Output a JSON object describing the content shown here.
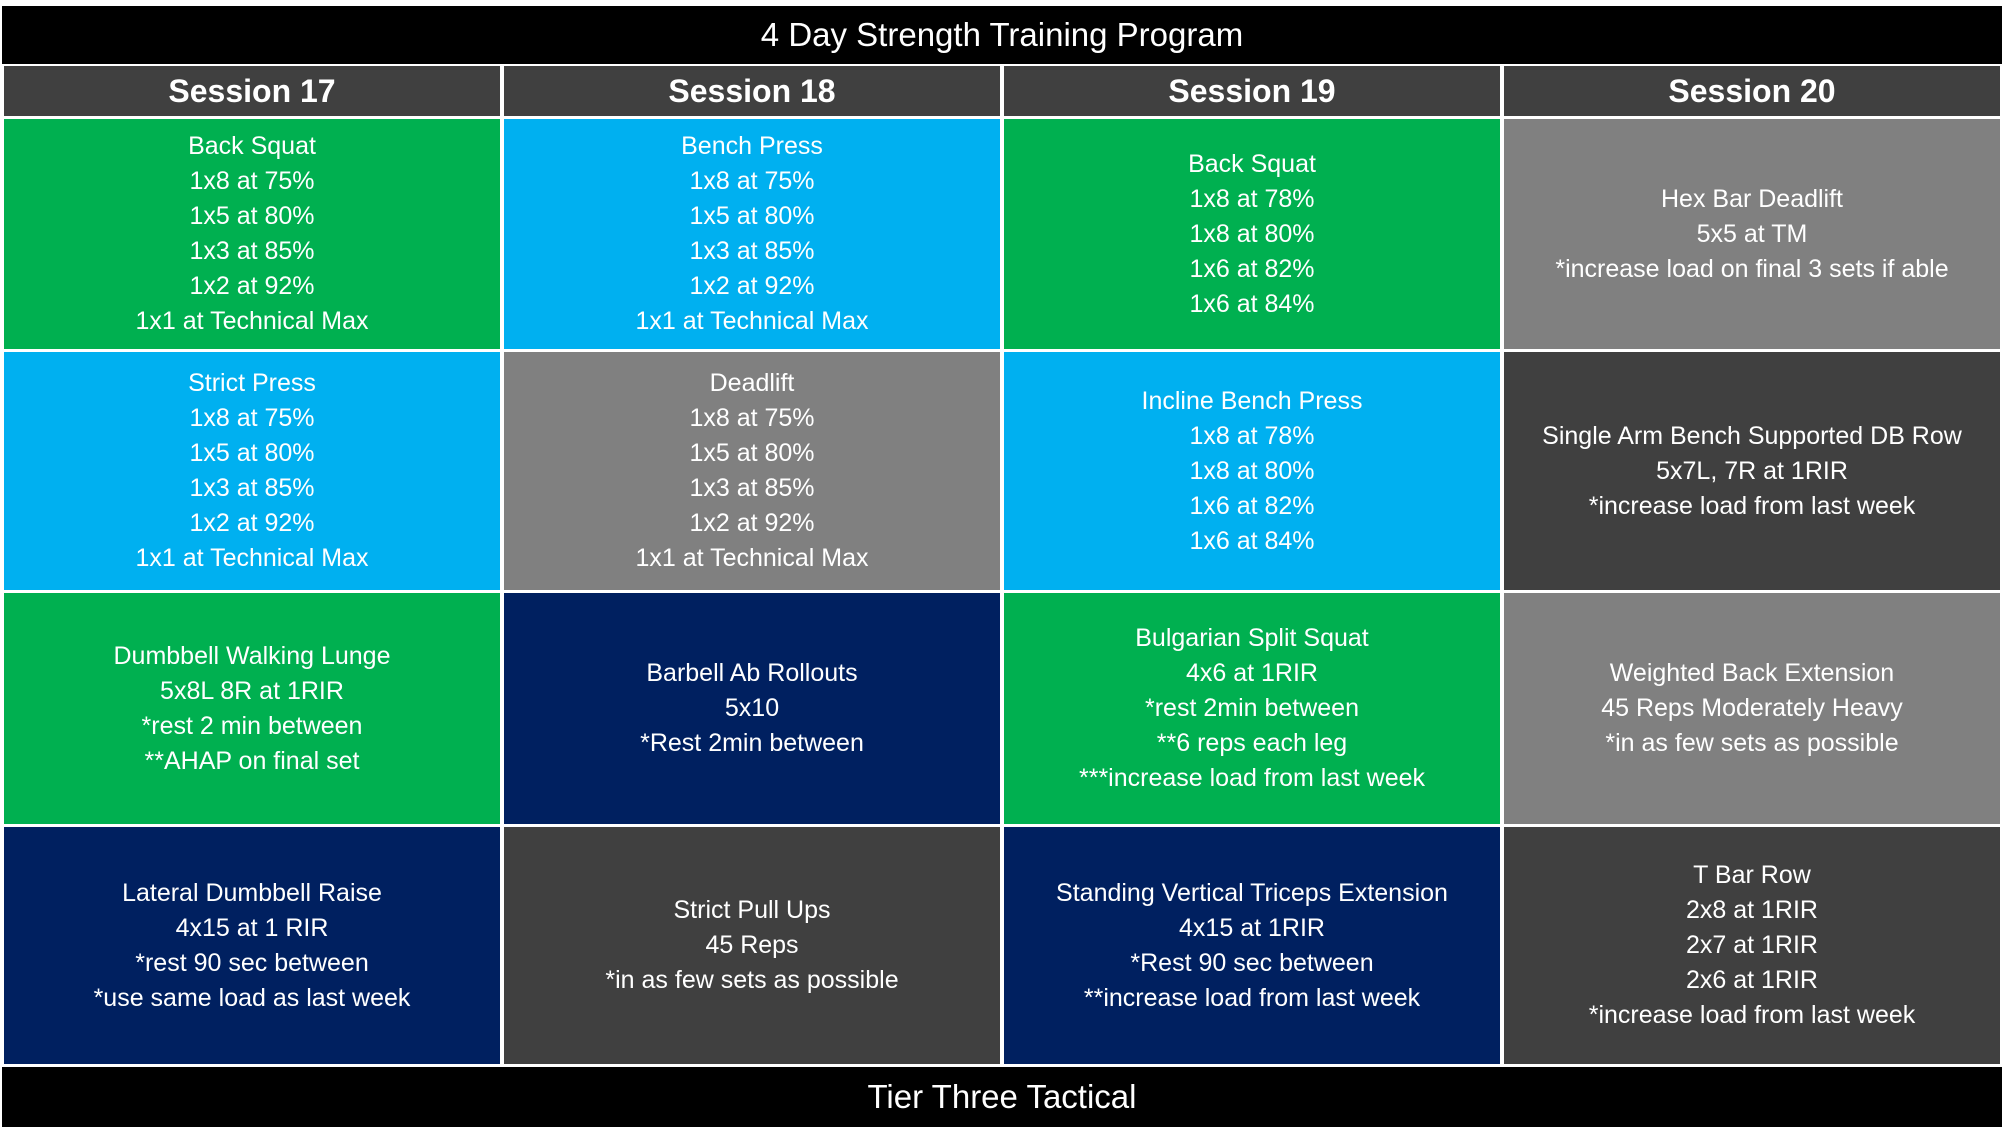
{
  "title": "4 Day Strength Training Program",
  "columns": [
    "Session 17",
    "Session 18",
    "Session 19",
    "Session 20"
  ],
  "rows": [
    [
      {
        "color": "#00b050",
        "lines": [
          "Back Squat",
          "1x8 at 75%",
          "1x5 at 80%",
          "1x3 at 85%",
          "1x2 at 92%",
          "1x1 at Technical Max"
        ]
      },
      {
        "color": "#00b0f0",
        "lines": [
          "Bench Press",
          "1x8 at 75%",
          "1x5 at 80%",
          "1x3 at 85%",
          "1x2 at 92%",
          "1x1 at Technical Max"
        ]
      },
      {
        "color": "#00b050",
        "lines": [
          "Back Squat",
          "1x8 at 78%",
          "1x8 at 80%",
          "1x6 at 82%",
          "1x6 at 84%"
        ]
      },
      {
        "color": "#808080",
        "lines": [
          "Hex Bar Deadlift",
          "5x5 at TM",
          "*increase load on final 3 sets if able"
        ]
      }
    ],
    [
      {
        "color": "#00b0f0",
        "lines": [
          "Strict Press",
          "1x8 at 75%",
          "1x5 at 80%",
          "1x3 at 85%",
          "1x2 at 92%",
          "1x1 at Technical Max"
        ]
      },
      {
        "color": "#808080",
        "lines": [
          "Deadlift",
          "1x8 at 75%",
          "1x5 at 80%",
          "1x3 at 85%",
          "1x2 at 92%",
          "1x1 at Technical Max"
        ]
      },
      {
        "color": "#00b0f0",
        "lines": [
          "Incline Bench Press",
          "1x8 at 78%",
          "1x8 at 80%",
          "1x6 at 82%",
          "1x6 at 84%"
        ]
      },
      {
        "color": "#404040",
        "lines": [
          "Single Arm Bench Supported DB Row",
          "5x7L, 7R at 1RIR",
          "*increase load from last week"
        ]
      }
    ],
    [
      {
        "color": "#00b050",
        "lines": [
          "Dumbbell Walking Lunge",
          "5x8L 8R at 1RIR",
          "*rest 2 min between",
          "**AHAP on final set"
        ]
      },
      {
        "color": "#002060",
        "lines": [
          "Barbell Ab Rollouts",
          "5x10",
          "*Rest 2min between"
        ]
      },
      {
        "color": "#00b050",
        "lines": [
          "Bulgarian Split Squat",
          "4x6 at 1RIR",
          "*rest 2min between",
          "**6 reps each leg",
          "***increase load from last week"
        ]
      },
      {
        "color": "#808080",
        "lines": [
          "Weighted Back Extension",
          "45 Reps Moderately Heavy",
          "*in as few sets as possible"
        ]
      }
    ],
    [
      {
        "color": "#002060",
        "lines": [
          "Lateral Dumbbell Raise",
          "4x15 at 1 RIR",
          "*rest 90 sec between",
          "*use same load as last week"
        ]
      },
      {
        "color": "#404040",
        "lines": [
          "Strict Pull Ups",
          "45 Reps",
          "*in as few sets as possible"
        ]
      },
      {
        "color": "#002060",
        "lines": [
          "Standing Vertical Triceps Extension",
          "4x15 at 1RIR",
          "*Rest 90 sec between",
          "**increase load from last week"
        ]
      },
      {
        "color": "#404040",
        "lines": [
          "T Bar Row",
          "2x8 at 1RIR",
          "2x7 at 1RIR",
          "2x6 at 1RIR",
          "*increase load from last week"
        ]
      }
    ]
  ],
  "footer": "Tier Three Tactical"
}
